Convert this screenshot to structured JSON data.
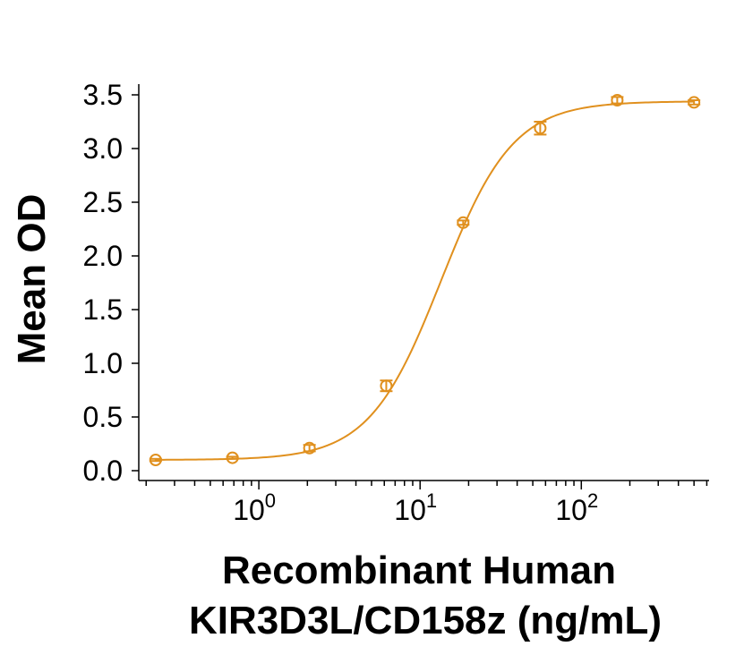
{
  "chart_data": {
    "type": "scatter",
    "title": "",
    "xlabel_line1": "Recombinant Human",
    "xlabel_line2": "KIR3D3L/CD158z (ng/mL)",
    "ylabel": "Mean OD",
    "x_scale": "log",
    "xlim": [
      0.18,
      620
    ],
    "ylim": [
      0,
      3.5
    ],
    "y_ticks": [
      "0.0",
      "0.5",
      "1.0",
      "1.5",
      "2.0",
      "2.5",
      "3.0",
      "3.5"
    ],
    "y_tick_values": [
      0,
      0.5,
      1.0,
      1.5,
      2.0,
      2.5,
      3.0,
      3.5
    ],
    "x_major_ticks": [
      {
        "value": 1,
        "base": "10",
        "exp": "0"
      },
      {
        "value": 10,
        "base": "10",
        "exp": "1"
      },
      {
        "value": 100,
        "base": "10",
        "exp": "2"
      }
    ],
    "grid": false,
    "legend": "none",
    "color": "#E0901E",
    "series": [
      {
        "x": [
          0.229,
          0.686,
          2.06,
          6.17,
          18.5,
          55.6,
          167,
          500
        ],
        "y": [
          0.1,
          0.12,
          0.21,
          0.79,
          2.31,
          3.19,
          3.45,
          3.43
        ],
        "error": [
          0.01,
          0.01,
          0.03,
          0.05,
          0.02,
          0.06,
          0.03,
          0.02
        ]
      }
    ],
    "fit": {
      "model": "4PL",
      "bottom": 0.1,
      "top": 3.44,
      "ec50": 13.5,
      "hill": 1.95
    }
  }
}
